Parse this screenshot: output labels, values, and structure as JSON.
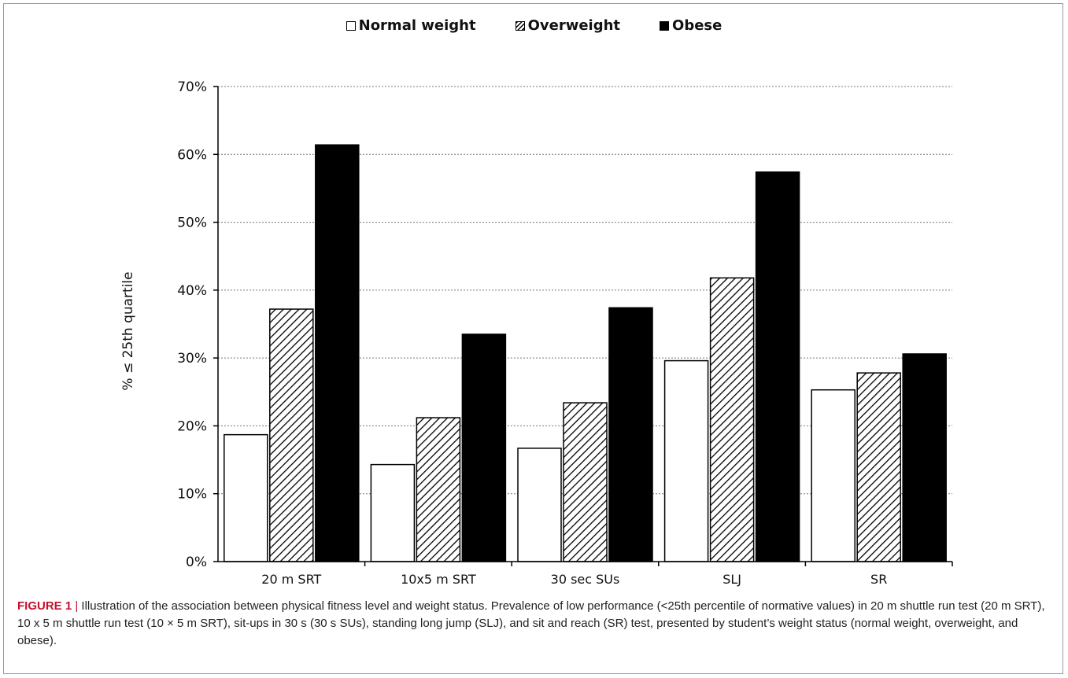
{
  "chart_data": {
    "type": "bar",
    "title": "",
    "xlabel": "",
    "ylabel": "% ≤ 25th quartile",
    "ylim": [
      0,
      70
    ],
    "yticks": [
      0,
      10,
      20,
      30,
      40,
      50,
      60,
      70
    ],
    "ytick_labels": [
      "0%",
      "10%",
      "20%",
      "30%",
      "40%",
      "50%",
      "60%",
      "70%"
    ],
    "grid": true,
    "legend_position": "top-center",
    "categories": [
      "20 m SRT",
      "10x5 m SRT",
      "30 sec SUs",
      "SLJ",
      "SR"
    ],
    "series": [
      {
        "name": "Normal weight",
        "fill": "white",
        "values": [
          18.7,
          14.3,
          16.7,
          29.6,
          25.3
        ]
      },
      {
        "name": "Overweight",
        "fill": "hatched",
        "values": [
          37.2,
          21.2,
          23.4,
          41.8,
          27.8
        ]
      },
      {
        "name": "Obese",
        "fill": "black",
        "values": [
          61.4,
          33.5,
          37.4,
          57.4,
          30.6
        ]
      }
    ]
  },
  "caption": {
    "label": "FIGURE 1",
    "separator": " | ",
    "text": "Illustration of the association between physical fitness level and weight status. Prevalence of low performance (<25th percentile of normative values) in 20 m shuttle run test (20 m SRT), 10 x 5 m shuttle run test (10 × 5 m SRT), sit-ups in 30 s (30 s SUs), standing long jump (SLJ), and sit and reach (SR) test, presented by student’s weight status (normal weight, overweight, and obese)."
  }
}
